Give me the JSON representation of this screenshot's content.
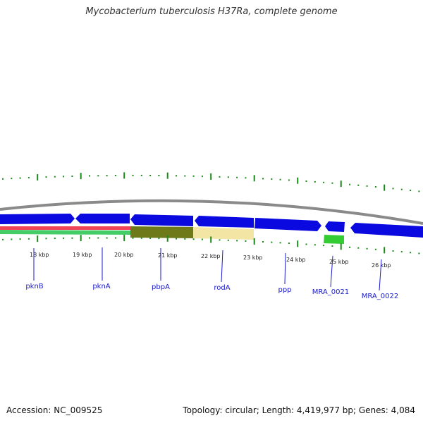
{
  "title": "Mycobacterium tuberculosis H37Ra, complete genome",
  "footer": {
    "accession": "Accession: NC_009525",
    "summary": "Topology: circular; Length: 4,419,977 bp; Genes: 4,084"
  },
  "colors": {
    "backbone": "#8a8a8a",
    "gene_forward": "#0a0ae0",
    "gene_highlight": "#33cc33",
    "tick": "#1a8a1a",
    "label": "#1a1acc",
    "track_red": "#ee4455",
    "track_green": "#44cc66",
    "track_olive": "#6e7a1a",
    "track_yellow": "#f2e39a"
  },
  "scale": {
    "unit": "kbp",
    "ticks": [
      "18 kbp",
      "19 kbp",
      "20 kbp",
      "21 kbp",
      "22 kbp",
      "23 kbp",
      "24 kbp",
      "25 kbp",
      "26 kbp"
    ]
  },
  "genes": [
    "pknB",
    "pknA",
    "pbpA",
    "rodA",
    "ppp",
    "MRA_0021",
    "MRA_0022"
  ]
}
